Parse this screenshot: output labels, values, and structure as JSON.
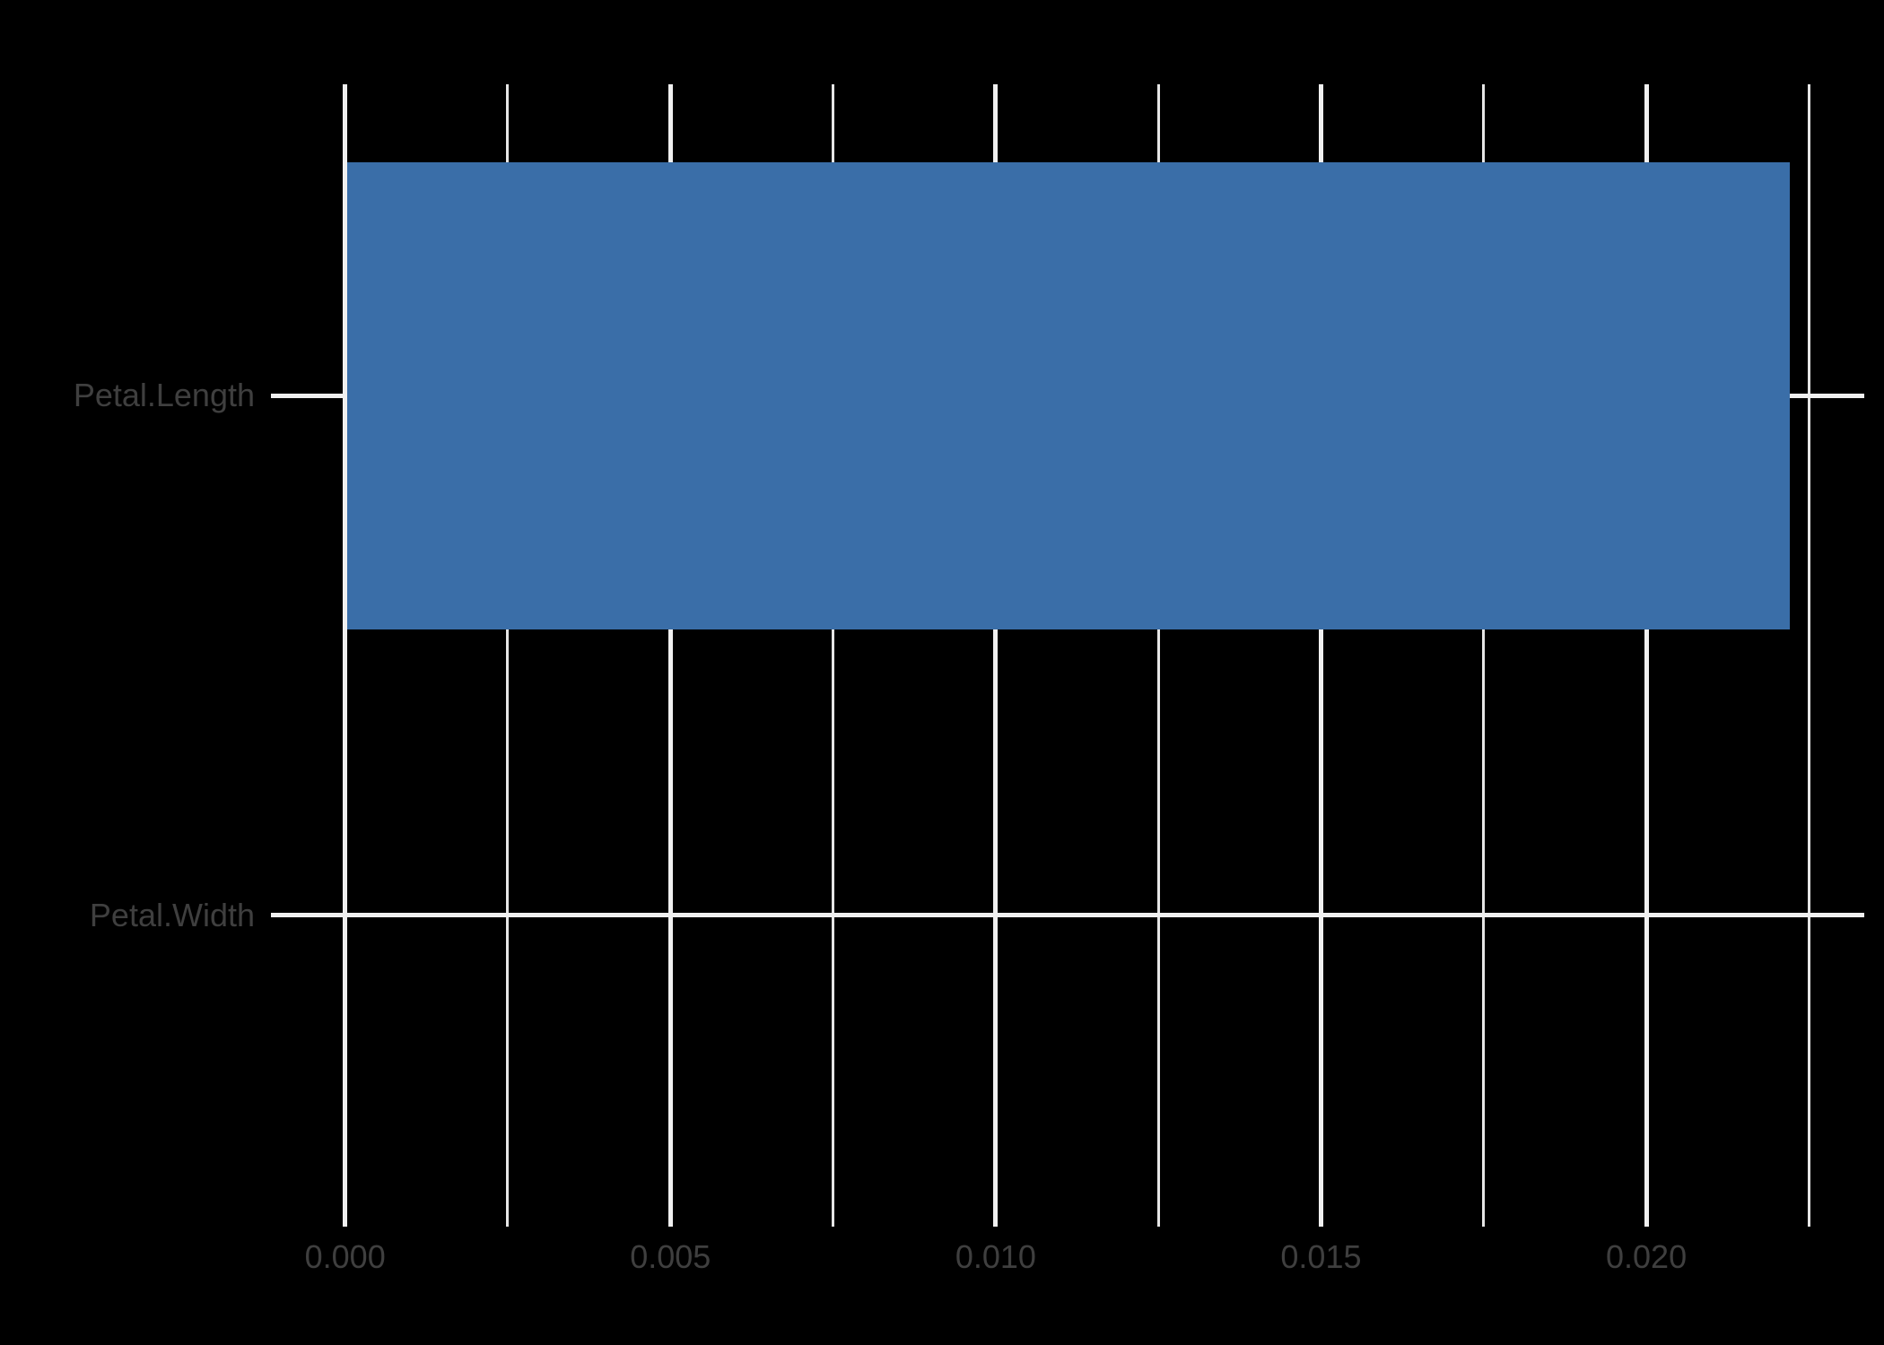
{
  "chart_data": {
    "type": "bar",
    "orientation": "horizontal",
    "title": "",
    "xlabel": "",
    "ylabel": "",
    "categories": [
      "Petal.Length",
      "Petal.Width"
    ],
    "values": [
      0.0222,
      0
    ],
    "x_axis": {
      "range": [
        -0.00114,
        0.02335
      ],
      "major_ticks": [
        0,
        0.005,
        0.01,
        0.015,
        0.02
      ],
      "major_tick_labels": [
        "0.000",
        "0.005",
        "0.010",
        "0.015",
        "0.020"
      ],
      "minor_ticks": [
        0.0025,
        0.0075,
        0.0125,
        0.0175,
        0.0225
      ],
      "grid": "on"
    },
    "y_axis": {
      "grid": "on"
    },
    "legend": "none",
    "colors": {
      "bar": "#3A6EA8",
      "background": "#000000",
      "grid_major": "#F0F0F0",
      "grid_minor": "#E6E6E6",
      "text": "#3F3F3F"
    }
  }
}
